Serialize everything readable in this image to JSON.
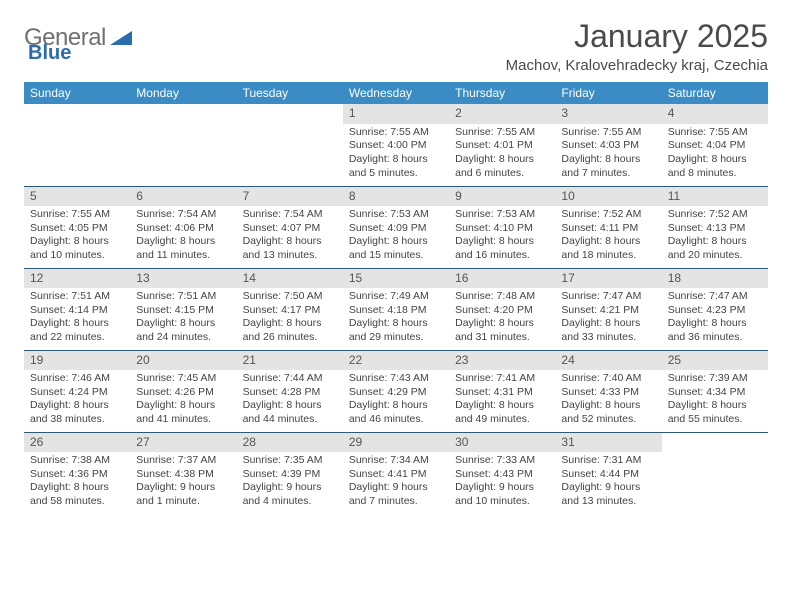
{
  "logo": {
    "text1": "General",
    "text2": "Blue"
  },
  "title": "January 2025",
  "subtitle": "Machov, Kralovehradecky kraj, Czechia",
  "colors": {
    "header_bg": "#3b8bc4",
    "header_text": "#ffffff",
    "daynum_bg": "#e4e4e4",
    "row_divider": "#2b5a7a",
    "logo_gray": "#707070",
    "logo_blue": "#2b6cb0"
  },
  "day_headers": [
    "Sunday",
    "Monday",
    "Tuesday",
    "Wednesday",
    "Thursday",
    "Friday",
    "Saturday"
  ],
  "weeks": [
    [
      {
        "n": "",
        "sr": "",
        "ss": "",
        "dl": ""
      },
      {
        "n": "",
        "sr": "",
        "ss": "",
        "dl": ""
      },
      {
        "n": "",
        "sr": "",
        "ss": "",
        "dl": ""
      },
      {
        "n": "1",
        "sr": "Sunrise: 7:55 AM",
        "ss": "Sunset: 4:00 PM",
        "dl": "Daylight: 8 hours and 5 minutes."
      },
      {
        "n": "2",
        "sr": "Sunrise: 7:55 AM",
        "ss": "Sunset: 4:01 PM",
        "dl": "Daylight: 8 hours and 6 minutes."
      },
      {
        "n": "3",
        "sr": "Sunrise: 7:55 AM",
        "ss": "Sunset: 4:03 PM",
        "dl": "Daylight: 8 hours and 7 minutes."
      },
      {
        "n": "4",
        "sr": "Sunrise: 7:55 AM",
        "ss": "Sunset: 4:04 PM",
        "dl": "Daylight: 8 hours and 8 minutes."
      }
    ],
    [
      {
        "n": "5",
        "sr": "Sunrise: 7:55 AM",
        "ss": "Sunset: 4:05 PM",
        "dl": "Daylight: 8 hours and 10 minutes."
      },
      {
        "n": "6",
        "sr": "Sunrise: 7:54 AM",
        "ss": "Sunset: 4:06 PM",
        "dl": "Daylight: 8 hours and 11 minutes."
      },
      {
        "n": "7",
        "sr": "Sunrise: 7:54 AM",
        "ss": "Sunset: 4:07 PM",
        "dl": "Daylight: 8 hours and 13 minutes."
      },
      {
        "n": "8",
        "sr": "Sunrise: 7:53 AM",
        "ss": "Sunset: 4:09 PM",
        "dl": "Daylight: 8 hours and 15 minutes."
      },
      {
        "n": "9",
        "sr": "Sunrise: 7:53 AM",
        "ss": "Sunset: 4:10 PM",
        "dl": "Daylight: 8 hours and 16 minutes."
      },
      {
        "n": "10",
        "sr": "Sunrise: 7:52 AM",
        "ss": "Sunset: 4:11 PM",
        "dl": "Daylight: 8 hours and 18 minutes."
      },
      {
        "n": "11",
        "sr": "Sunrise: 7:52 AM",
        "ss": "Sunset: 4:13 PM",
        "dl": "Daylight: 8 hours and 20 minutes."
      }
    ],
    [
      {
        "n": "12",
        "sr": "Sunrise: 7:51 AM",
        "ss": "Sunset: 4:14 PM",
        "dl": "Daylight: 8 hours and 22 minutes."
      },
      {
        "n": "13",
        "sr": "Sunrise: 7:51 AM",
        "ss": "Sunset: 4:15 PM",
        "dl": "Daylight: 8 hours and 24 minutes."
      },
      {
        "n": "14",
        "sr": "Sunrise: 7:50 AM",
        "ss": "Sunset: 4:17 PM",
        "dl": "Daylight: 8 hours and 26 minutes."
      },
      {
        "n": "15",
        "sr": "Sunrise: 7:49 AM",
        "ss": "Sunset: 4:18 PM",
        "dl": "Daylight: 8 hours and 29 minutes."
      },
      {
        "n": "16",
        "sr": "Sunrise: 7:48 AM",
        "ss": "Sunset: 4:20 PM",
        "dl": "Daylight: 8 hours and 31 minutes."
      },
      {
        "n": "17",
        "sr": "Sunrise: 7:47 AM",
        "ss": "Sunset: 4:21 PM",
        "dl": "Daylight: 8 hours and 33 minutes."
      },
      {
        "n": "18",
        "sr": "Sunrise: 7:47 AM",
        "ss": "Sunset: 4:23 PM",
        "dl": "Daylight: 8 hours and 36 minutes."
      }
    ],
    [
      {
        "n": "19",
        "sr": "Sunrise: 7:46 AM",
        "ss": "Sunset: 4:24 PM",
        "dl": "Daylight: 8 hours and 38 minutes."
      },
      {
        "n": "20",
        "sr": "Sunrise: 7:45 AM",
        "ss": "Sunset: 4:26 PM",
        "dl": "Daylight: 8 hours and 41 minutes."
      },
      {
        "n": "21",
        "sr": "Sunrise: 7:44 AM",
        "ss": "Sunset: 4:28 PM",
        "dl": "Daylight: 8 hours and 44 minutes."
      },
      {
        "n": "22",
        "sr": "Sunrise: 7:43 AM",
        "ss": "Sunset: 4:29 PM",
        "dl": "Daylight: 8 hours and 46 minutes."
      },
      {
        "n": "23",
        "sr": "Sunrise: 7:41 AM",
        "ss": "Sunset: 4:31 PM",
        "dl": "Daylight: 8 hours and 49 minutes."
      },
      {
        "n": "24",
        "sr": "Sunrise: 7:40 AM",
        "ss": "Sunset: 4:33 PM",
        "dl": "Daylight: 8 hours and 52 minutes."
      },
      {
        "n": "25",
        "sr": "Sunrise: 7:39 AM",
        "ss": "Sunset: 4:34 PM",
        "dl": "Daylight: 8 hours and 55 minutes."
      }
    ],
    [
      {
        "n": "26",
        "sr": "Sunrise: 7:38 AM",
        "ss": "Sunset: 4:36 PM",
        "dl": "Daylight: 8 hours and 58 minutes."
      },
      {
        "n": "27",
        "sr": "Sunrise: 7:37 AM",
        "ss": "Sunset: 4:38 PM",
        "dl": "Daylight: 9 hours and 1 minute."
      },
      {
        "n": "28",
        "sr": "Sunrise: 7:35 AM",
        "ss": "Sunset: 4:39 PM",
        "dl": "Daylight: 9 hours and 4 minutes."
      },
      {
        "n": "29",
        "sr": "Sunrise: 7:34 AM",
        "ss": "Sunset: 4:41 PM",
        "dl": "Daylight: 9 hours and 7 minutes."
      },
      {
        "n": "30",
        "sr": "Sunrise: 7:33 AM",
        "ss": "Sunset: 4:43 PM",
        "dl": "Daylight: 9 hours and 10 minutes."
      },
      {
        "n": "31",
        "sr": "Sunrise: 7:31 AM",
        "ss": "Sunset: 4:44 PM",
        "dl": "Daylight: 9 hours and 13 minutes."
      },
      {
        "n": "",
        "sr": "",
        "ss": "",
        "dl": ""
      }
    ]
  ]
}
